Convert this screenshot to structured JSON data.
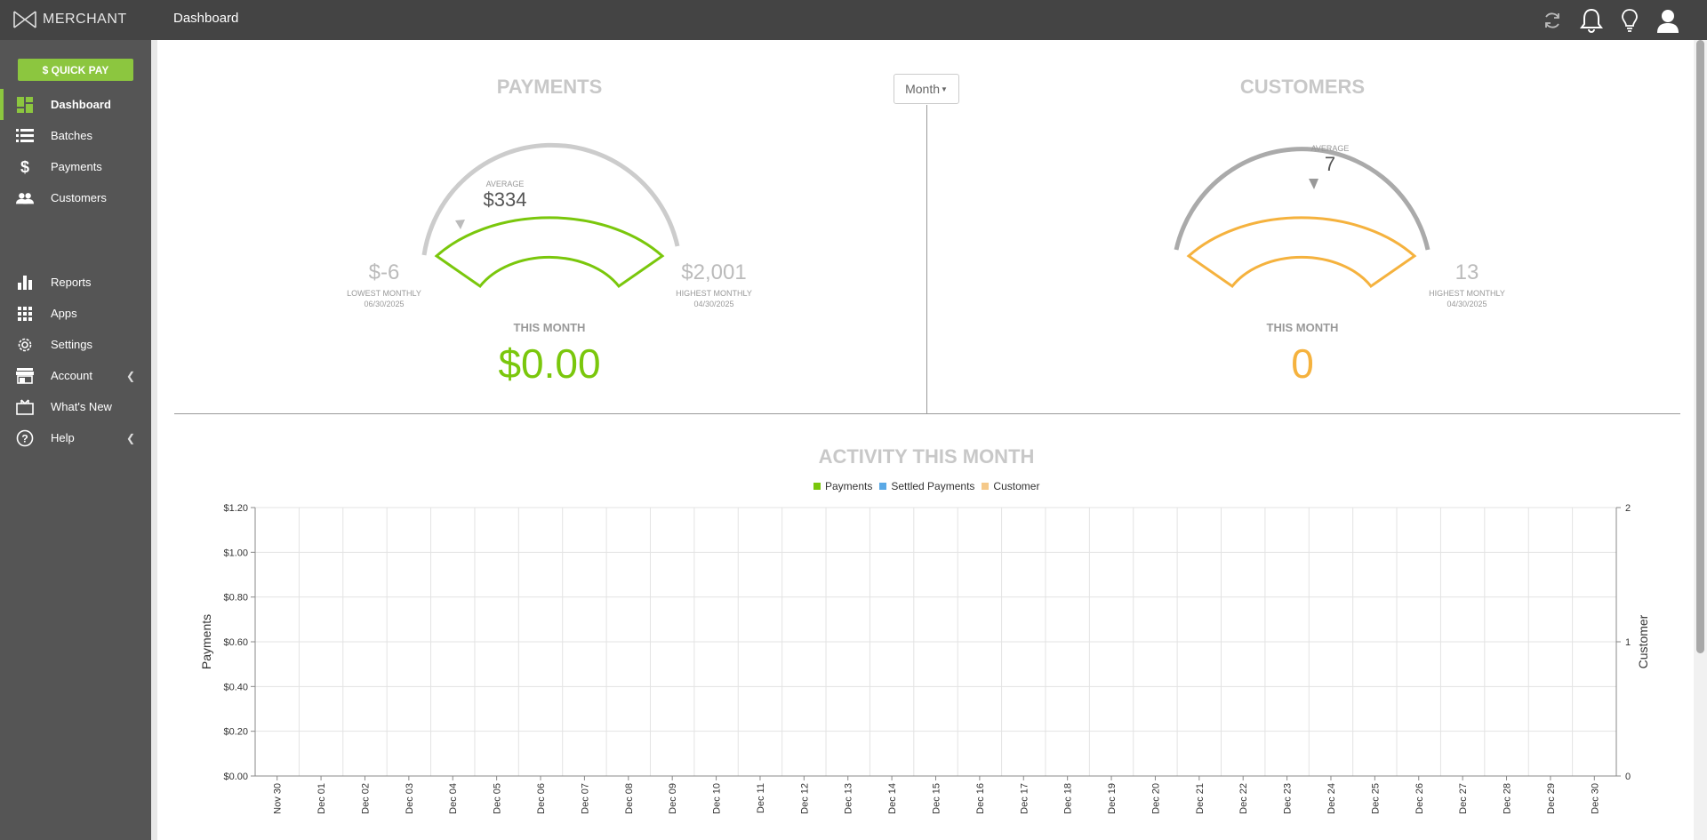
{
  "app": {
    "logo_text": "MERCHANT",
    "page_title": "Dashboard"
  },
  "topbar_icons": [
    "refresh-icon",
    "bell-icon",
    "lightbulb-icon",
    "user-icon"
  ],
  "sidebar": {
    "quick_pay_label": "$ QUICK PAY",
    "items": [
      {
        "label": "Dashboard",
        "icon": "dashboard-icon",
        "active": true
      },
      {
        "label": "Batches",
        "icon": "batches-icon"
      },
      {
        "label": "Payments",
        "icon": "dollar-icon"
      },
      {
        "label": "Customers",
        "icon": "users-icon"
      },
      {
        "label": "Reports",
        "icon": "bar-chart-icon"
      },
      {
        "label": "Apps",
        "icon": "apps-grid-icon"
      },
      {
        "label": "Settings",
        "icon": "gear-icon"
      },
      {
        "label": "Account",
        "icon": "store-icon",
        "expandable": true
      },
      {
        "label": "What's New",
        "icon": "gift-icon"
      },
      {
        "label": "Help",
        "icon": "help-icon",
        "expandable": true
      }
    ]
  },
  "period_select": {
    "value": "Month"
  },
  "payments": {
    "title": "PAYMENTS",
    "average_label": "AVERAGE",
    "average_value": "$334",
    "lowest_value": "$-6",
    "lowest_label": "LOWEST MONTHLY",
    "lowest_date": "06/30/2025",
    "highest_value": "$2,001",
    "highest_label": "HIGHEST MONTHLY",
    "highest_date": "04/30/2025",
    "this_month_label": "THIS MONTH",
    "this_month_value": "$0.00",
    "color": "#7ac70c"
  },
  "customers": {
    "title": "CUSTOMERS",
    "average_label": "AVERAGE",
    "average_value": "7",
    "highest_value": "13",
    "highest_label": "HIGHEST MONTHLY",
    "highest_date": "04/30/2025",
    "this_month_label": "THIS MONTH",
    "this_month_value": "0",
    "color": "#f5b23e"
  },
  "activity": {
    "title": "ACTIVITY THIS MONTH",
    "legend": [
      {
        "name": "Payments",
        "color": "#7ac70c"
      },
      {
        "name": "Settled Payments",
        "color": "#5aa9e6"
      },
      {
        "name": "Customer",
        "color": "#f5c98a"
      }
    ]
  },
  "chart_data": {
    "type": "bar",
    "categories": [
      "Nov 30",
      "Dec 01",
      "Dec 02",
      "Dec 03",
      "Dec 04",
      "Dec 05",
      "Dec 06",
      "Dec 07",
      "Dec 08",
      "Dec 09",
      "Dec 10",
      "Dec 11",
      "Dec 12",
      "Dec 13",
      "Dec 14",
      "Dec 15",
      "Dec 16",
      "Dec 17",
      "Dec 18",
      "Dec 19",
      "Dec 20",
      "Dec 21",
      "Dec 22",
      "Dec 23",
      "Dec 24",
      "Dec 25",
      "Dec 26",
      "Dec 27",
      "Dec 28",
      "Dec 29",
      "Dec 30"
    ],
    "series": [
      {
        "name": "Payments",
        "axis": "left",
        "values": [
          0,
          0,
          0,
          0,
          0,
          0,
          0,
          0,
          0,
          0,
          0,
          0,
          0,
          0,
          0,
          0,
          0,
          0,
          0,
          0,
          0,
          0,
          0,
          0,
          0,
          0,
          0,
          0,
          0,
          0,
          0
        ]
      },
      {
        "name": "Settled Payments",
        "axis": "left",
        "values": [
          0,
          0,
          0,
          0,
          0,
          0,
          0,
          0,
          0,
          0,
          0,
          0,
          0,
          0,
          0,
          0,
          0,
          0,
          0,
          0,
          0,
          0,
          0,
          0,
          0,
          0,
          0,
          0,
          0,
          0,
          0
        ]
      },
      {
        "name": "Customer",
        "axis": "right",
        "values": [
          0,
          0,
          0,
          0,
          0,
          0,
          0,
          0,
          0,
          0,
          0,
          0,
          0,
          0,
          0,
          0,
          0,
          0,
          0,
          0,
          0,
          0,
          0,
          0,
          0,
          0,
          0,
          0,
          0,
          0,
          0
        ]
      }
    ],
    "ylabel": "Payments",
    "y2label": "Customer",
    "ylim": [
      0,
      1.2
    ],
    "y_ticks": [
      "$0.00",
      "$0.20",
      "$0.40",
      "$0.60",
      "$0.80",
      "$1.00",
      "$1.20"
    ],
    "y2lim": [
      0,
      2
    ],
    "y2_ticks": [
      "0",
      "1",
      "2"
    ],
    "grid": true,
    "legend_position": "top"
  }
}
